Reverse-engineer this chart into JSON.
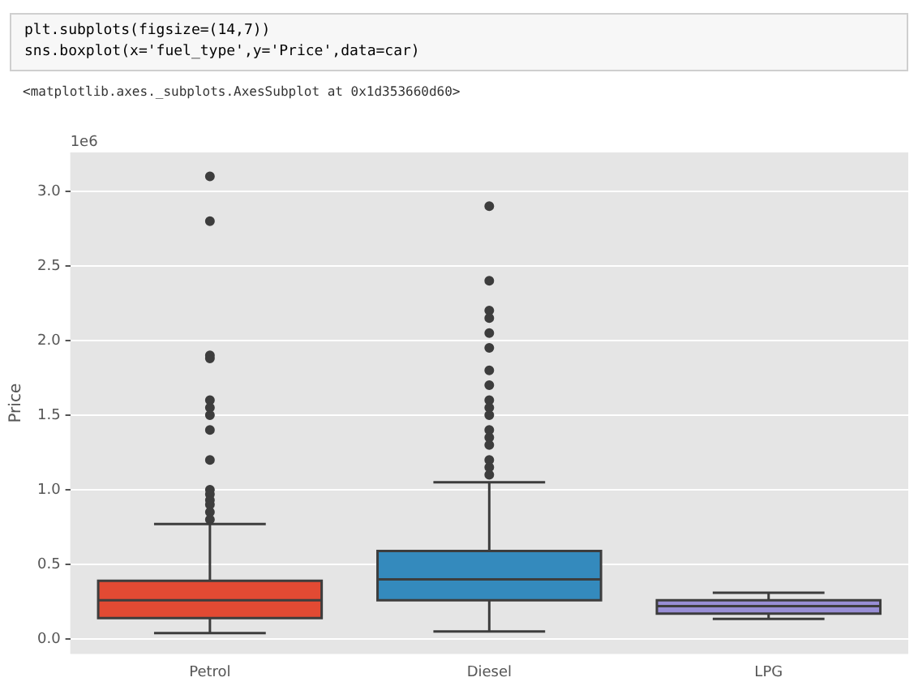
{
  "chart_data": {
    "type": "box",
    "categories": [
      "Petrol",
      "Diesel",
      "LPG"
    ],
    "ylabel": "Price",
    "colors": [
      "#e24a33",
      "#348abd",
      "#988ed5"
    ],
    "boxes": [
      {
        "low": 0.04,
        "q1": 0.14,
        "median": 0.26,
        "q3": 0.39,
        "high": 0.77,
        "outliers": [
          3.1,
          2.8,
          1.9,
          1.88,
          1.6,
          1.55,
          1.5,
          1.4,
          1.2,
          1.0,
          0.97,
          0.93,
          0.9,
          0.85,
          0.8
        ]
      },
      {
        "low": 0.05,
        "q1": 0.26,
        "median": 0.4,
        "q3": 0.59,
        "high": 1.05,
        "outliers": [
          2.9,
          2.4,
          2.2,
          2.15,
          2.05,
          1.95,
          1.8,
          1.7,
          1.6,
          1.55,
          1.5,
          1.4,
          1.35,
          1.3,
          1.2,
          1.15,
          1.1
        ]
      },
      {
        "low": 0.135,
        "q1": 0.17,
        "median": 0.22,
        "q3": 0.26,
        "high": 0.31
      }
    ],
    "ylim": [
      -0.1,
      3.26
    ],
    "yticks": [
      {
        "value": 0,
        "label": "0.0"
      },
      {
        "value": 0.5,
        "label": "0.5"
      },
      {
        "value": 1,
        "label": "1.0"
      },
      {
        "value": 1.5,
        "label": "1.5"
      },
      {
        "value": 2,
        "label": "2.0"
      },
      {
        "value": 2.5,
        "label": "2.5"
      },
      {
        "value": 3,
        "label": "3.0"
      }
    ],
    "grid": "y",
    "annotations": [
      "plt.subplots(figsize=(14,7))",
      "sns.boxplot(x='fuel_type',y='Price',data=car)",
      "<matplotlib.axes._subplots.AxesSubplot at 0x1d353660d60>",
      "1e6"
    ]
  }
}
